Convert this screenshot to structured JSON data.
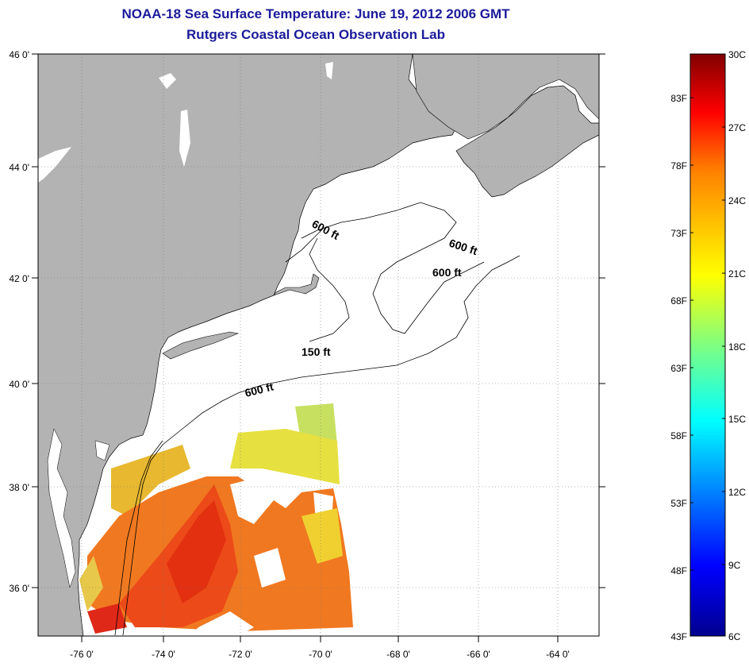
{
  "title": {
    "line1": "NOAA-18 Sea Surface Temperature:  June 19, 2012 2006 GMT",
    "line2": "Rutgers Coastal Ocean Observation Lab"
  },
  "map": {
    "lat_ticks": [
      "46 0'",
      "44 0'",
      "42 0'",
      "40 0'",
      "38 0'",
      "36 0'"
    ],
    "lon_ticks": [
      "-76 0'",
      "-74 0'",
      "-72 0'",
      "-70 0'",
      "-68 0'",
      "-66 0'",
      "-64 0'"
    ],
    "contour_labels": [
      "600 ft",
      "600 ft",
      "600 ft",
      "150 ft",
      "600 ft"
    ],
    "land_color": "#b3b3b3",
    "no_data_color": "#ffffff"
  },
  "colorbar": {
    "celsius_labels": [
      "30C",
      "27C",
      "24C",
      "21C",
      "18C",
      "15C",
      "12C",
      "9C",
      "6C"
    ],
    "fahrenheit_labels": [
      "83F",
      "78F",
      "73F",
      "68F",
      "63F",
      "58F",
      "53F",
      "48F",
      "43F"
    ],
    "range_c": [
      6,
      30
    ],
    "colors": [
      "#00008f",
      "#0000ff",
      "#0080ff",
      "#00ffff",
      "#80ff80",
      "#ffff00",
      "#ff8000",
      "#ff0000",
      "#800000"
    ]
  }
}
